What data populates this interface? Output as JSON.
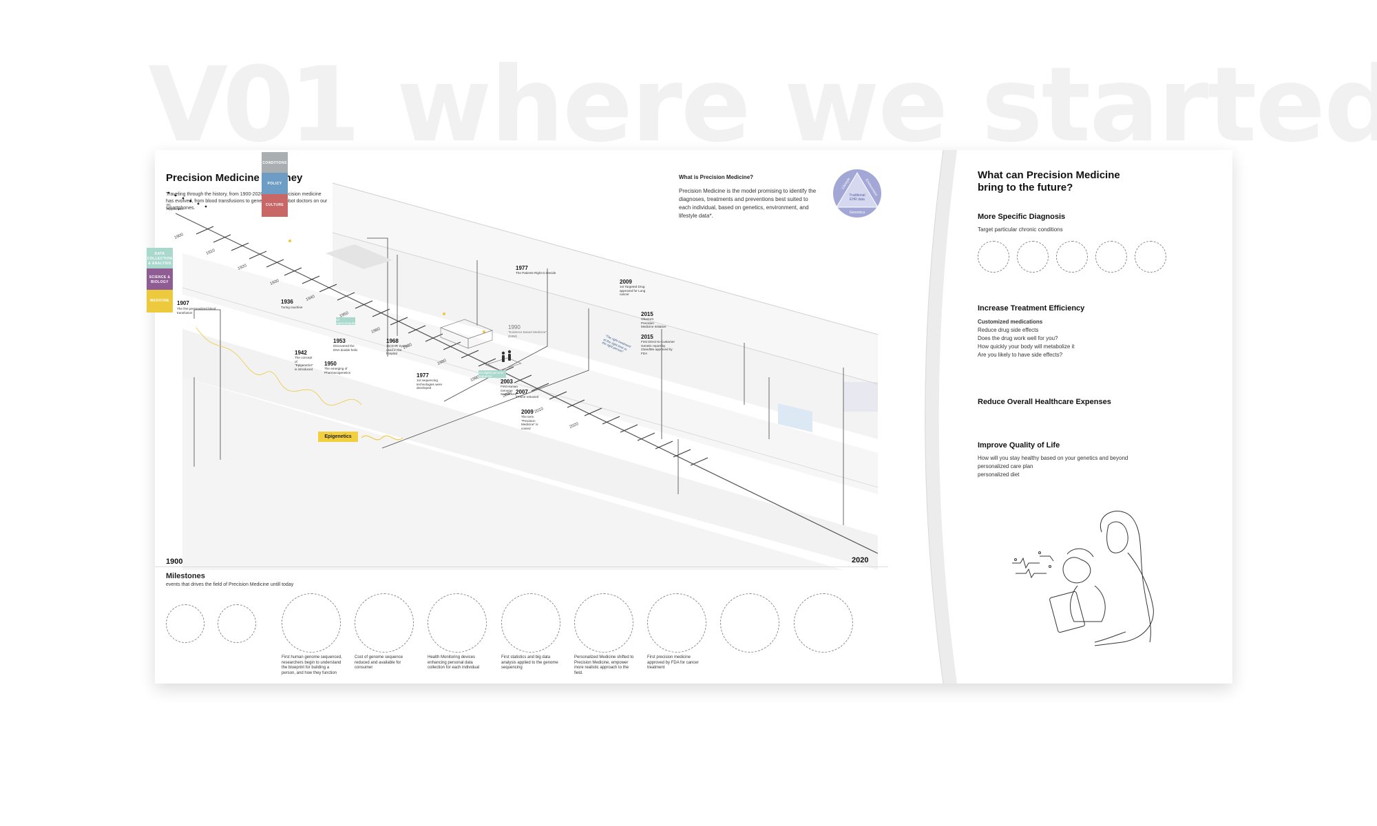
{
  "hero": {
    "number": "V01",
    "title": "where we started"
  },
  "journey": {
    "title": "Precision Medicine Journey",
    "intro": "Traveling through the history, from 1900-2020, of how precision medicine has evolved, from blood transfusions to gene editing to robot doctors on our smartphones."
  },
  "whatis": {
    "title": "What is Precision Medicine?",
    "body": "Precision Medicine is the model promising to identify the diagnoses, treatments and preventions best suited to each individual, based on genetics, environment, and lifestyle data*.",
    "diagram": {
      "top_left": "Lifestyle",
      "top_right": "Environment",
      "bottom": "Genomics",
      "center_line1": "Traditional",
      "center_line2": "EHR data"
    }
  },
  "categories": [
    {
      "label": "CONDITIONS",
      "color": "#a9aeb0"
    },
    {
      "label": "POLICY",
      "color": "#6d9dc4"
    },
    {
      "label": "CULTURE",
      "color": "#c96666"
    },
    {
      "label": "DATA COLLECTION & ANALYSIS",
      "color": "#a9d8cc"
    },
    {
      "label": "SCIENCE & BIOLOGY",
      "color": "#8f5c93"
    },
    {
      "label": "MEDICINE",
      "color": "#edc93d"
    }
  ],
  "hippocrates": {
    "line1": "BC",
    "line2": "Hippocrates"
  },
  "decades": [
    "1900",
    "1910",
    "1920",
    "1930",
    "1940",
    "1950",
    "1960",
    "1970",
    "1980",
    "1990",
    "2000",
    "2010",
    "2020"
  ],
  "events": [
    {
      "year": "1907",
      "text": "The first personalized blood transfusion"
    },
    {
      "year": "1936",
      "text": "Turing machine"
    },
    {
      "year": "1942",
      "text": "The concept of \"Epigenetics\" is introduced"
    },
    {
      "year": "1950",
      "text": "The emerging of Pharmacogenetics"
    },
    {
      "year": "1953",
      "text": "Discovered the DNA double helix"
    },
    {
      "year": "1968",
      "text": "1st EHR System used in the hospital"
    },
    {
      "year": "1977",
      "text": "1st sequencing technologies were developed"
    },
    {
      "year": "1977",
      "text": "The Patients Right to Decide"
    },
    {
      "year": "1990",
      "text": "\"Evidence Based Medicine\" (EBM)"
    },
    {
      "year": "2003",
      "text": "First Human Genome Sequenced"
    },
    {
      "year": "2007",
      "text": "iPhone released"
    },
    {
      "year": "2009",
      "text": "The term \"Precision Medicine\" is coined"
    },
    {
      "year": "2009",
      "text": "1st Targeted Drug approved for Lung cancer"
    },
    {
      "year": "2015",
      "text": "Obama's Precision Medicine Initiative"
    },
    {
      "year": "2015",
      "text": "First Direct-to-Customer Genetic report by 23andMe approved by FDA"
    }
  ],
  "tags": {
    "epigenetics": "Epigenetics",
    "tag1": "1st supercomputer",
    "tag2": "1st digital genome sequence"
  },
  "quote": "\"The right treatment at the right time to the right person\"",
  "scale": {
    "start": "1900",
    "end": "2020"
  },
  "milestones": {
    "title": "Milestones",
    "subtitle": "events that drives the field of Precision Medicine untill today",
    "captions": [
      "First human genome sequenced, researchers begin to understand the blueprint for building a person, and how they function",
      "Cost of genome sequence reduced and available for consumer",
      "Health Monitoring devices enhancing personal data collection for each individual",
      "First statistics and big data analysis applied to the genome sequencing",
      "Personalized Medicine shifted to Precision Medicine, empower more realistic approach to the field.",
      "First precision medicine approved by FDA for cancer treatment"
    ]
  },
  "future": {
    "title": "What can Precision Medicine bring to the future?",
    "sections": [
      {
        "heading": "More Specific Diagnosis",
        "lines": [
          "Target particular chronic conditions"
        ]
      },
      {
        "heading": "Increase Treatment Efficiency",
        "sub": "Customized medications",
        "lines": [
          "Reduce drug side effects",
          "Does the drug work well for you?",
          "How quickly your body will metabolize it",
          "Are you likely to have side effects?"
        ]
      },
      {
        "heading": "Reduce Overall Healthcare Expenses",
        "lines": []
      },
      {
        "heading": "Improve Quality of Life",
        "lines": [
          "How will you stay healthy based on your genetics and beyond",
          "personalized care plan",
          "personalized diet"
        ]
      }
    ]
  },
  "colors": {
    "medicine": "#edc93d",
    "science": "#8f5c93",
    "data": "#a9d8cc",
    "diagram": "#9da2d3"
  }
}
